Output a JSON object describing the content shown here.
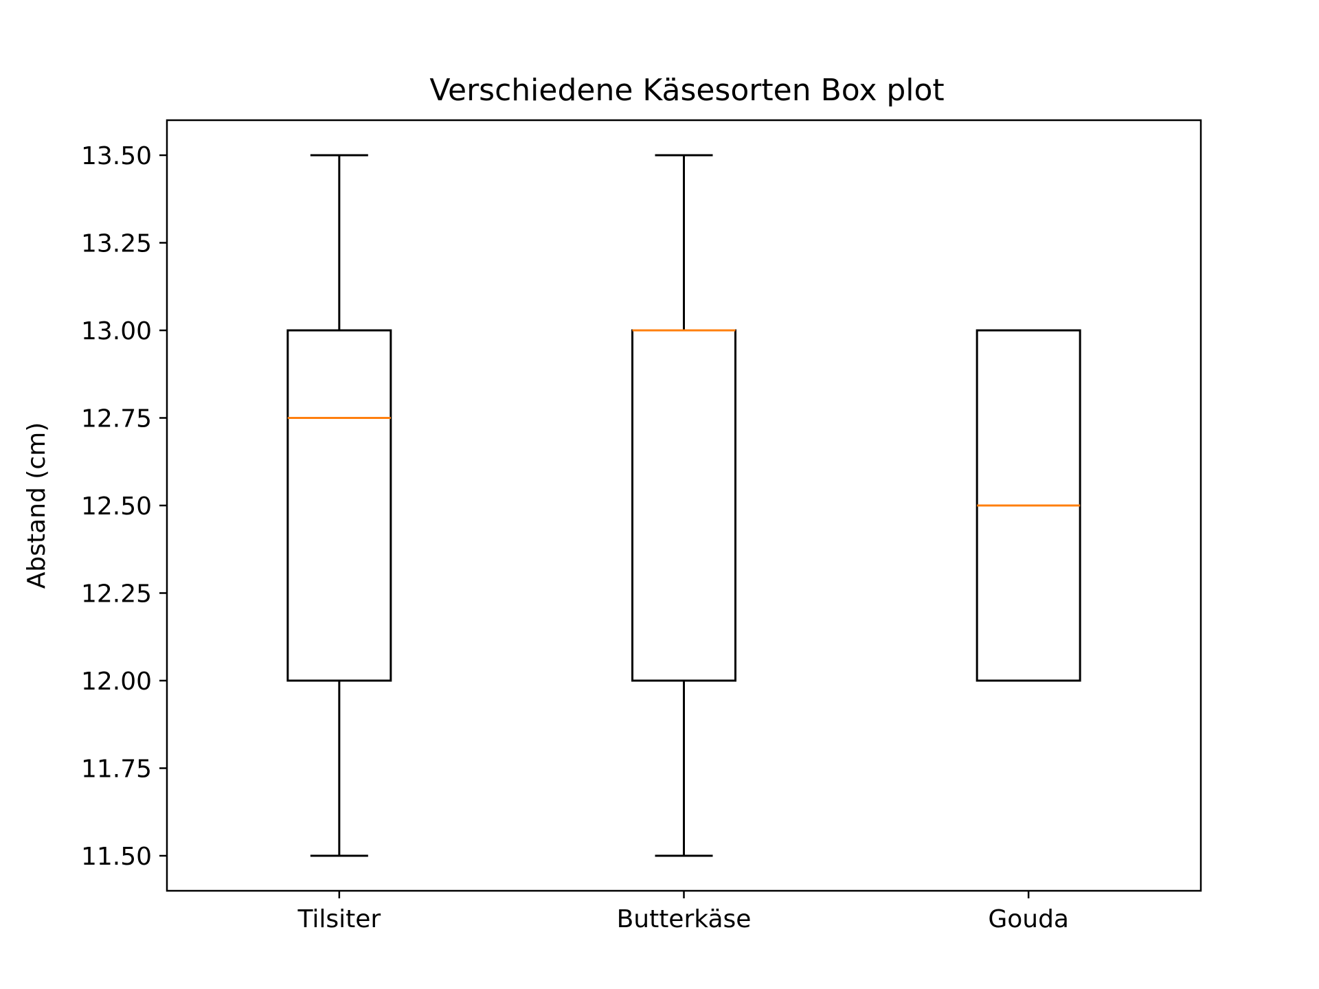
{
  "chart_data": {
    "type": "box",
    "title": "Verschiedene Käsesorten Box plot",
    "xlabel": "",
    "ylabel": "Abstand (cm)",
    "ylim": [
      11.4,
      13.6
    ],
    "yticks": [
      11.5,
      11.75,
      12.0,
      12.25,
      12.5,
      12.75,
      13.0,
      13.25,
      13.5
    ],
    "ytick_labels": [
      "11.50",
      "11.75",
      "12.00",
      "12.25",
      "12.50",
      "12.75",
      "13.00",
      "13.25",
      "13.50"
    ],
    "categories": [
      "Tilsiter",
      "Butterkäse",
      "Gouda"
    ],
    "boxes": [
      {
        "name": "Tilsiter",
        "whisker_low": 11.5,
        "q1": 12.0,
        "median": 12.75,
        "q3": 13.0,
        "whisker_high": 13.5
      },
      {
        "name": "Butterkäse",
        "whisker_low": 11.5,
        "q1": 12.0,
        "median": 13.0,
        "q3": 13.0,
        "whisker_high": 13.5
      },
      {
        "name": "Gouda",
        "whisker_low": 12.0,
        "q1": 12.0,
        "median": 12.5,
        "q3": 13.0,
        "whisker_high": 13.0
      }
    ],
    "grid": false,
    "colors": {
      "box": "#000000",
      "median": "#ff7f0e",
      "axes": "#000000"
    }
  }
}
